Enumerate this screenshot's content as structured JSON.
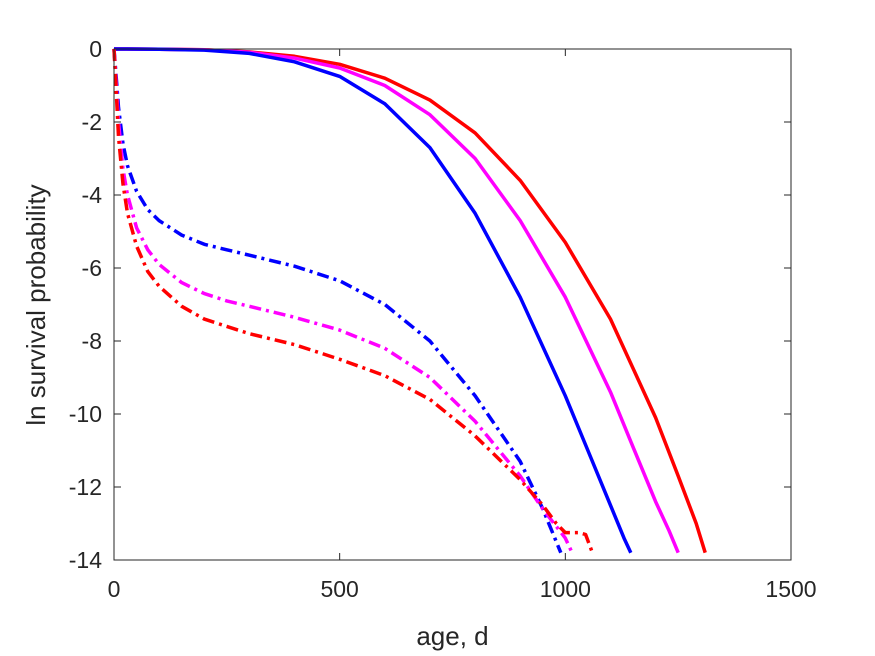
{
  "chart_data": {
    "type": "line",
    "title": "",
    "xlabel": "age, d",
    "ylabel": "ln survival probability",
    "xlim": [
      0,
      1500
    ],
    "ylim": [
      -14,
      0
    ],
    "xticks": [
      0,
      500,
      1000,
      1500
    ],
    "xtick_labels": [
      "0",
      "500",
      "1000",
      "1500"
    ],
    "yticks": [
      0,
      -2,
      -4,
      -6,
      -8,
      -10,
      -12,
      -14
    ],
    "ytick_labels": [
      "0",
      "-2",
      "-4",
      "-6",
      "-8",
      "-10",
      "-12",
      "-14"
    ],
    "grid": false,
    "legend": "none",
    "series": [
      {
        "color": "#ff0000",
        "style": "solid",
        "x": [
          0,
          100,
          200,
          300,
          400,
          500,
          600,
          700,
          800,
          900,
          1000,
          1100,
          1200,
          1250,
          1290,
          1310
        ],
        "y": [
          0,
          -0.005,
          -0.02,
          -0.08,
          -0.2,
          -0.42,
          -0.8,
          -1.4,
          -2.3,
          -3.6,
          -5.3,
          -7.4,
          -10.1,
          -11.7,
          -13.0,
          -13.8
        ]
      },
      {
        "color": "#ff00ff",
        "style": "solid",
        "x": [
          0,
          100,
          200,
          300,
          400,
          500,
          600,
          700,
          800,
          900,
          1000,
          1100,
          1150,
          1200,
          1230,
          1250
        ],
        "y": [
          0,
          -0.005,
          -0.02,
          -0.09,
          -0.25,
          -0.52,
          -1.0,
          -1.8,
          -3.0,
          -4.7,
          -6.8,
          -9.4,
          -10.9,
          -12.4,
          -13.2,
          -13.8
        ]
      },
      {
        "color": "#0000ff",
        "style": "solid",
        "x": [
          0,
          100,
          200,
          300,
          400,
          500,
          600,
          700,
          800,
          900,
          1000,
          1050,
          1100,
          1130,
          1145
        ],
        "y": [
          0,
          -0.005,
          -0.03,
          -0.12,
          -0.35,
          -0.75,
          -1.5,
          -2.7,
          -4.5,
          -6.8,
          -9.5,
          -11.0,
          -12.5,
          -13.4,
          -13.8
        ]
      },
      {
        "color": "#0000ff",
        "style": "dash-dot",
        "x": [
          0,
          5,
          10,
          20,
          30,
          50,
          75,
          100,
          150,
          200,
          250,
          300,
          400,
          500,
          600,
          700,
          800,
          900,
          950,
          990
        ],
        "y": [
          0,
          -0.8,
          -1.6,
          -2.6,
          -3.2,
          -3.9,
          -4.4,
          -4.7,
          -5.1,
          -5.35,
          -5.5,
          -5.65,
          -5.95,
          -6.35,
          -7.0,
          -8.0,
          -9.5,
          -11.3,
          -12.6,
          -13.8
        ]
      },
      {
        "color": "#ff00ff",
        "style": "dash-dot",
        "x": [
          0,
          5,
          10,
          20,
          30,
          50,
          75,
          100,
          150,
          200,
          250,
          300,
          400,
          500,
          600,
          700,
          800,
          900,
          950,
          1000,
          1015
        ],
        "y": [
          0,
          -1.0,
          -2.0,
          -3.3,
          -4.0,
          -4.9,
          -5.5,
          -5.9,
          -6.4,
          -6.7,
          -6.9,
          -7.05,
          -7.35,
          -7.7,
          -8.2,
          -9.0,
          -10.2,
          -11.7,
          -12.6,
          -13.4,
          -13.8
        ]
      },
      {
        "color": "#ff0000",
        "style": "dash-dot",
        "x": [
          0,
          5,
          10,
          20,
          30,
          50,
          75,
          100,
          150,
          200,
          250,
          300,
          400,
          500,
          600,
          700,
          800,
          900,
          950,
          980,
          1000,
          1030,
          1045,
          1060
        ],
        "y": [
          0,
          -1.2,
          -2.4,
          -3.7,
          -4.5,
          -5.4,
          -6.1,
          -6.5,
          -7.05,
          -7.4,
          -7.6,
          -7.8,
          -8.1,
          -8.5,
          -8.95,
          -9.6,
          -10.6,
          -11.8,
          -12.5,
          -13.0,
          -13.25,
          -13.25,
          -13.3,
          -13.8
        ]
      }
    ]
  }
}
